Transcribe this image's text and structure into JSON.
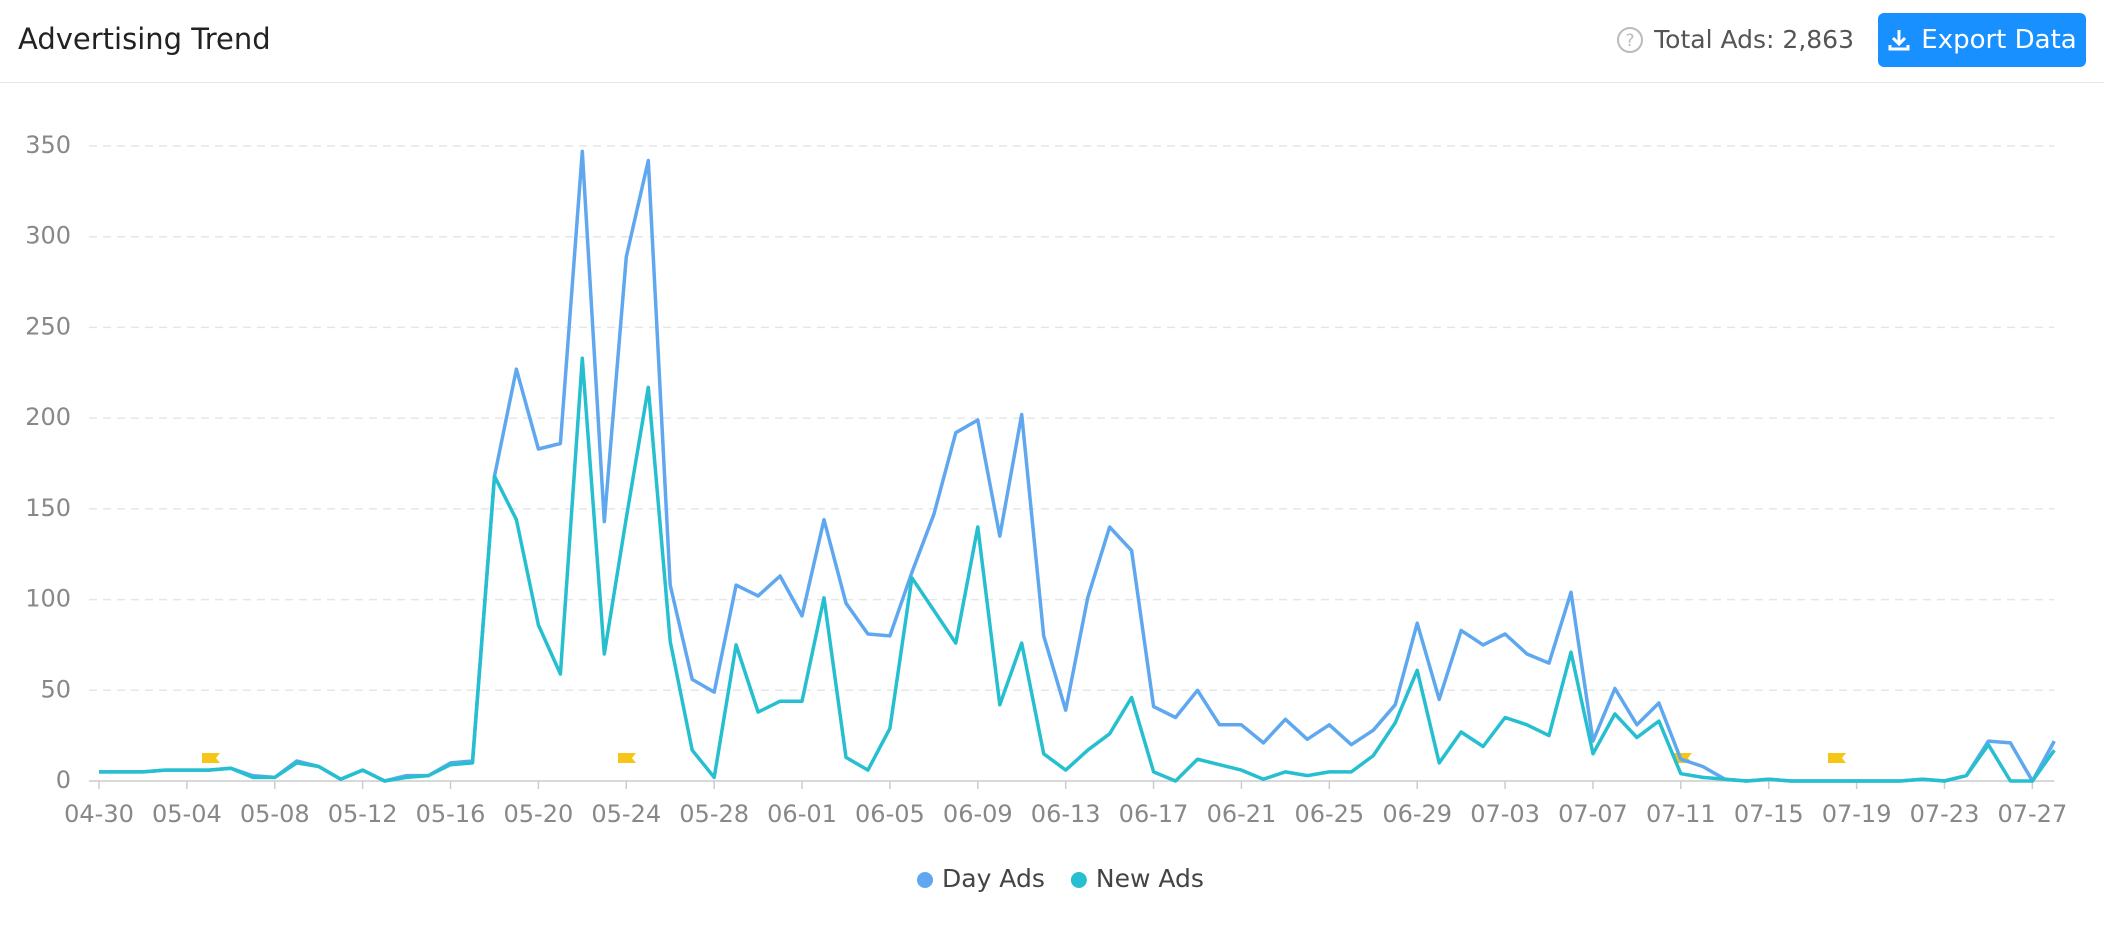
{
  "header": {
    "title": "Advertising Trend",
    "total": "Total Ads: 2,863",
    "button": "Export Data"
  },
  "chart_data": {
    "type": "line",
    "categories": [
      "04-30",
      null,
      null,
      null,
      "05-04",
      null,
      null,
      null,
      "05-08",
      null,
      null,
      null,
      "05-12",
      null,
      null,
      null,
      "05-16",
      null,
      null,
      null,
      "05-20",
      null,
      null,
      null,
      "05-24",
      null,
      null,
      null,
      "05-28",
      null,
      null,
      null,
      "06-01",
      null,
      null,
      null,
      "06-05",
      null,
      null,
      null,
      "06-09",
      null,
      null,
      null,
      "06-13",
      null,
      null,
      null,
      "06-17",
      null,
      null,
      null,
      "06-21",
      null,
      null,
      null,
      "06-25",
      null,
      null,
      null,
      "06-29",
      null,
      null,
      null,
      "07-03",
      null,
      null,
      null,
      "07-07",
      null,
      null,
      null,
      "07-11",
      null,
      null,
      null,
      "07-15",
      null,
      null,
      null,
      "07-19",
      null,
      null,
      null,
      "07-23",
      null,
      null,
      null,
      "07-27",
      null
    ],
    "series": [
      {
        "name": "Day Ads",
        "color": "#5fa8ef",
        "values": [
          5,
          5,
          5,
          6,
          6,
          6,
          7,
          3,
          2,
          11,
          8,
          1,
          6,
          0,
          3,
          3,
          10,
          11,
          168,
          227,
          183,
          186,
          347,
          143,
          289,
          342,
          108,
          56,
          49,
          108,
          102,
          113,
          91,
          144,
          98,
          81,
          80,
          115,
          147,
          192,
          199,
          135,
          202,
          80,
          39,
          101,
          140,
          127,
          41,
          35,
          50,
          31,
          31,
          21,
          34,
          23,
          31,
          20,
          28,
          42,
          87,
          45,
          83,
          75,
          81,
          70,
          65,
          104,
          22,
          51,
          31,
          43,
          12,
          8,
          1,
          0,
          1,
          0,
          0,
          0,
          0,
          0,
          0,
          1,
          0,
          3,
          22,
          21,
          0,
          22
        ]
      },
      {
        "name": "New Ads",
        "color": "#26bfcf",
        "values": [
          5,
          5,
          5,
          6,
          6,
          6,
          7,
          2,
          2,
          10,
          8,
          1,
          6,
          0,
          2,
          3,
          9,
          10,
          168,
          144,
          86,
          59,
          233,
          70,
          145,
          217,
          77,
          17,
          2,
          75,
          38,
          44,
          44,
          101,
          13,
          6,
          29,
          112,
          94,
          76,
          140,
          42,
          76,
          15,
          6,
          17,
          26,
          46,
          5,
          0,
          12,
          9,
          6,
          1,
          5,
          3,
          5,
          5,
          14,
          32,
          61,
          10,
          27,
          19,
          35,
          31,
          25,
          71,
          15,
          37,
          24,
          33,
          4,
          2,
          1,
          0,
          1,
          0,
          0,
          0,
          0,
          0,
          0,
          1,
          0,
          3,
          20,
          0,
          0,
          17
        ]
      }
    ],
    "ylim": [
      0,
      350
    ],
    "yticks": [
      0,
      50,
      100,
      150,
      200,
      250,
      300,
      350
    ],
    "grid": true
  }
}
